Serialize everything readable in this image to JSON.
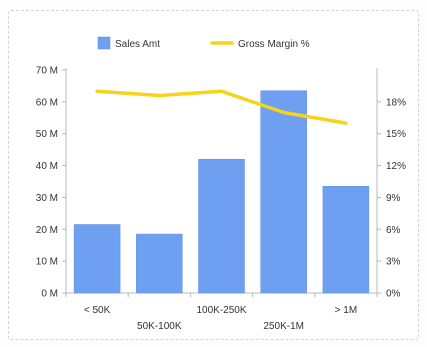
{
  "chart_data": {
    "type": "bar",
    "categories": [
      "< 50K",
      "50K-100K",
      "100K-250K",
      "250K-1M",
      "> 1M"
    ],
    "series": [
      {
        "name": "Sales Amt",
        "type": "bar",
        "axis": "left",
        "color": "#6f9ff0",
        "values": [
          21.5,
          18.5,
          42,
          63.5,
          33.5
        ]
      },
      {
        "name": "Gross Margin %",
        "type": "line",
        "axis": "right",
        "color": "#f5d41c",
        "values": [
          19.0,
          18.6,
          19.0,
          17.0,
          16.0
        ]
      }
    ],
    "y_left": {
      "min": 0,
      "max": 70,
      "ticks": [
        "0 M",
        "10 M",
        "20 M",
        "30 M",
        "40 M",
        "50 M",
        "60 M",
        "70 M"
      ]
    },
    "y_right": {
      "min": 0,
      "max": 21,
      "ticks": [
        "0%",
        "3%",
        "6%",
        "9%",
        "12%",
        "15%",
        "18%"
      ]
    },
    "grid": false,
    "legend_position": "top"
  }
}
